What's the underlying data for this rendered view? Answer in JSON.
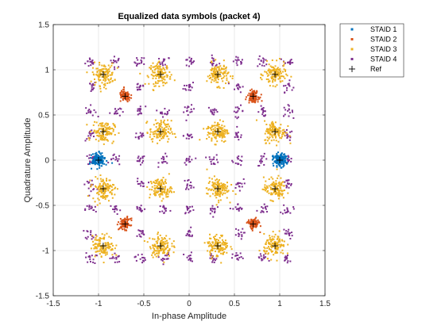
{
  "chart_data": {
    "type": "scatter",
    "title": "Equalized data symbols (packet 4)",
    "xlabel": "In-phase Amplitude",
    "ylabel": "Quadrature Amplitude",
    "xlim": [
      -1.5,
      1.5
    ],
    "ylim": [
      -1.5,
      1.5
    ],
    "xticks": [
      "-1.5",
      "-1",
      "-0.5",
      "0",
      "0.5",
      "1",
      "1.5"
    ],
    "yticks": [
      "-1.5",
      "-1",
      "-0.5",
      "0",
      "0.5",
      "1",
      "1.5"
    ],
    "grid": true,
    "legend_position": "outside-top-right",
    "series": [
      {
        "name": "STAID 1",
        "color": "#0072BD",
        "marker": "dot",
        "centers": [
          [
            -1.0,
            0.0
          ],
          [
            1.0,
            0.0
          ]
        ],
        "spread": 0.035,
        "points_per_center": 160
      },
      {
        "name": "STAID 2",
        "color": "#D95319",
        "marker": "dot",
        "centers": [
          [
            -0.707,
            0.707
          ],
          [
            0.707,
            0.707
          ],
          [
            -0.707,
            -0.707
          ],
          [
            0.707,
            -0.707
          ]
        ],
        "spread": 0.03,
        "points_per_center": 110
      },
      {
        "name": "STAID 3",
        "color": "#EDB120",
        "marker": "dot",
        "centers": [
          [
            -0.948,
            0.948
          ],
          [
            -0.316,
            0.948
          ],
          [
            0.316,
            0.948
          ],
          [
            0.948,
            0.948
          ],
          [
            -0.948,
            0.316
          ],
          [
            -0.316,
            0.316
          ],
          [
            0.316,
            0.316
          ],
          [
            0.948,
            0.316
          ],
          [
            -0.948,
            -0.316
          ],
          [
            -0.316,
            -0.316
          ],
          [
            0.316,
            -0.316
          ],
          [
            0.948,
            -0.316
          ],
          [
            -0.948,
            -0.948
          ],
          [
            -0.316,
            -0.948
          ],
          [
            0.316,
            -0.948
          ],
          [
            0.948,
            -0.948
          ]
        ],
        "spread": 0.06,
        "points_per_center": 120
      },
      {
        "name": "STAID 4",
        "color": "#7E2F8E",
        "marker": "dot",
        "centers": [
          [
            -1.085,
            1.085
          ],
          [
            -0.814,
            1.085
          ],
          [
            -0.542,
            1.085
          ],
          [
            -0.271,
            1.085
          ],
          [
            0.0,
            1.085
          ],
          [
            0.271,
            1.085
          ],
          [
            0.542,
            1.085
          ],
          [
            0.814,
            1.085
          ],
          [
            1.085,
            1.085
          ],
          [
            -1.085,
            0.814
          ],
          [
            -0.542,
            0.814
          ],
          [
            0.0,
            0.814
          ],
          [
            0.542,
            0.814
          ],
          [
            1.085,
            0.814
          ],
          [
            -1.085,
            0.542
          ],
          [
            -0.814,
            0.542
          ],
          [
            -0.542,
            0.542
          ],
          [
            -0.271,
            0.542
          ],
          [
            0.0,
            0.542
          ],
          [
            0.271,
            0.542
          ],
          [
            0.542,
            0.542
          ],
          [
            0.814,
            0.542
          ],
          [
            1.085,
            0.542
          ],
          [
            -1.085,
            0.271
          ],
          [
            -0.542,
            0.271
          ],
          [
            0.0,
            0.271
          ],
          [
            0.542,
            0.271
          ],
          [
            1.085,
            0.271
          ],
          [
            -1.085,
            0.0
          ],
          [
            -0.814,
            0.0
          ],
          [
            -0.542,
            0.0
          ],
          [
            -0.271,
            0.0
          ],
          [
            0.0,
            0.0
          ],
          [
            0.271,
            0.0
          ],
          [
            0.542,
            0.0
          ],
          [
            0.814,
            0.0
          ],
          [
            1.085,
            0.0
          ],
          [
            -1.085,
            -0.271
          ],
          [
            -0.542,
            -0.271
          ],
          [
            0.0,
            -0.271
          ],
          [
            0.542,
            -0.271
          ],
          [
            1.085,
            -0.271
          ],
          [
            -1.085,
            -0.542
          ],
          [
            -0.814,
            -0.542
          ],
          [
            -0.542,
            -0.542
          ],
          [
            -0.271,
            -0.542
          ],
          [
            0.0,
            -0.542
          ],
          [
            0.271,
            -0.542
          ],
          [
            0.542,
            -0.542
          ],
          [
            0.814,
            -0.542
          ],
          [
            1.085,
            -0.542
          ],
          [
            -1.085,
            -0.814
          ],
          [
            -0.542,
            -0.814
          ],
          [
            0.0,
            -0.814
          ],
          [
            0.542,
            -0.814
          ],
          [
            1.085,
            -0.814
          ],
          [
            -1.085,
            -1.085
          ],
          [
            -0.814,
            -1.085
          ],
          [
            -0.542,
            -1.085
          ],
          [
            -0.271,
            -1.085
          ],
          [
            0.0,
            -1.085
          ],
          [
            0.271,
            -1.085
          ],
          [
            0.542,
            -1.085
          ],
          [
            0.814,
            -1.085
          ],
          [
            1.085,
            -1.085
          ]
        ],
        "spread": 0.03,
        "points_per_center": 14
      }
    ],
    "reference": {
      "name": "Ref",
      "color": "#000000",
      "marker": "plus",
      "points": [
        [
          -1.0,
          0.0
        ],
        [
          1.0,
          0.0
        ],
        [
          -0.707,
          0.707
        ],
        [
          0.707,
          0.707
        ],
        [
          -0.707,
          -0.707
        ],
        [
          0.707,
          -0.707
        ],
        [
          -0.948,
          0.948
        ],
        [
          -0.316,
          0.948
        ],
        [
          0.316,
          0.948
        ],
        [
          0.948,
          0.948
        ],
        [
          -0.948,
          0.316
        ],
        [
          -0.316,
          0.316
        ],
        [
          0.316,
          0.316
        ],
        [
          0.948,
          0.316
        ],
        [
          -0.948,
          -0.316
        ],
        [
          -0.316,
          -0.316
        ],
        [
          0.316,
          -0.316
        ],
        [
          0.948,
          -0.316
        ],
        [
          -0.948,
          -0.948
        ],
        [
          -0.316,
          -0.948
        ],
        [
          0.316,
          -0.948
        ],
        [
          0.948,
          -0.948
        ]
      ]
    }
  }
}
